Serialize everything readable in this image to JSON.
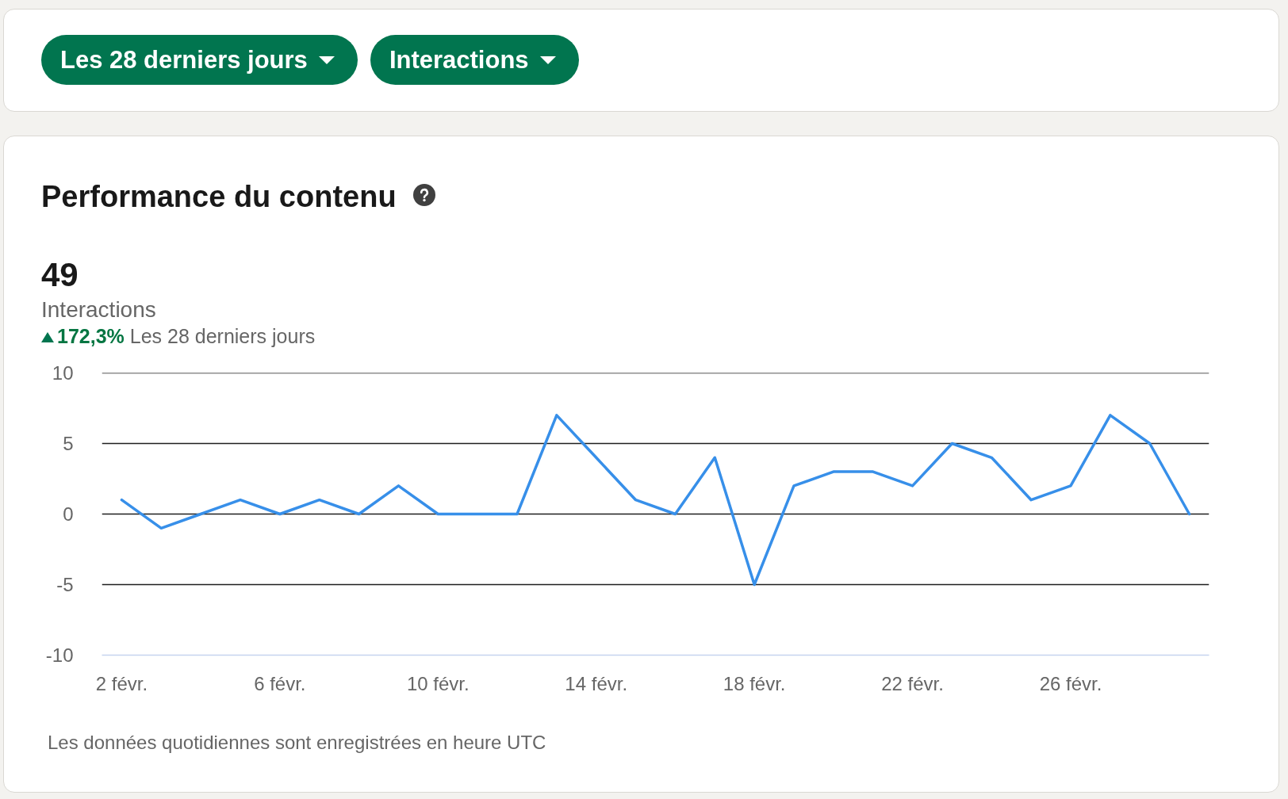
{
  "chart_data": {
    "type": "line",
    "title": "Performance du contenu",
    "categories": [
      "2 févr.",
      null,
      null,
      null,
      "6 févr.",
      null,
      null,
      null,
      "10 févr.",
      null,
      null,
      null,
      "14 févr.",
      null,
      null,
      null,
      "18 févr.",
      null,
      null,
      null,
      "22 févr.",
      null,
      null,
      null,
      "26 févr.",
      null,
      null,
      null
    ],
    "series": [
      {
        "color": "#378fe9",
        "values": [
          1,
          -1,
          0,
          1,
          0,
          1,
          0,
          2,
          0,
          0,
          0,
          7,
          4,
          1,
          0,
          4,
          -5,
          2,
          3,
          3,
          2,
          5,
          4,
          1,
          2,
          7,
          5,
          0
        ]
      }
    ],
    "ylim": [
      -10,
      10
    ],
    "yticks": [
      -10,
      -5,
      0,
      5,
      10
    ],
    "grid": "y",
    "line_style": "solid",
    "annotations": [
      "Les 28 derniers jours",
      "Interactions",
      "49",
      "Interactions",
      "172,3%",
      "Les 28 derniers jours",
      "Les données quotidiennes sont enregistrées en heure UTC"
    ]
  }
}
